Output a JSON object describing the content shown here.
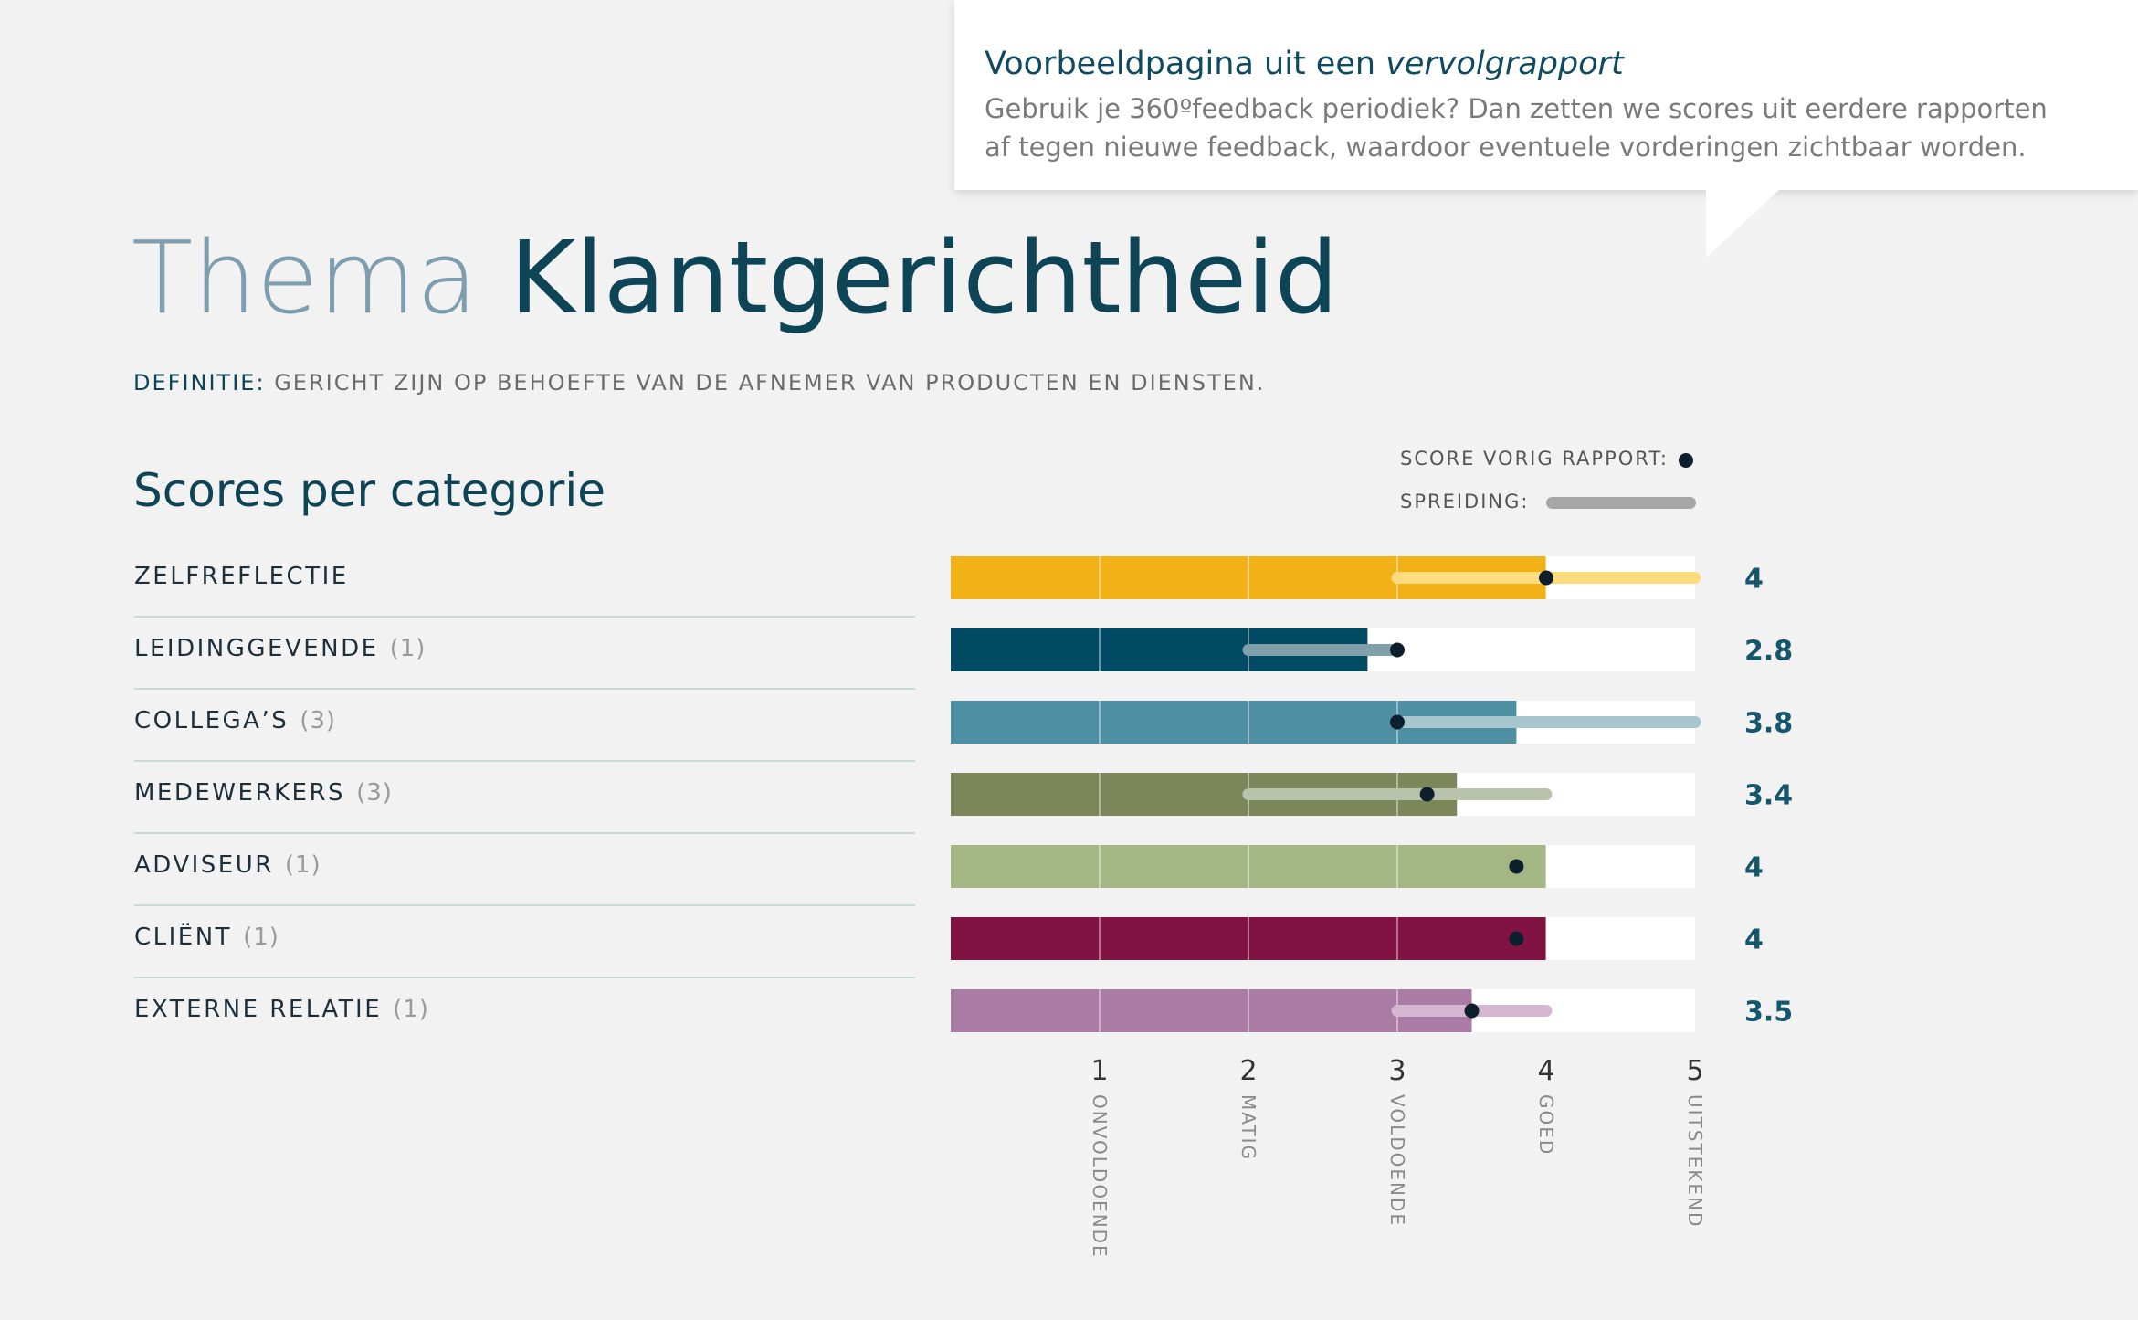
{
  "callout": {
    "title_prefix": "Voorbeeldpagina uit een ",
    "title_emphasis": "vervolgrapport",
    "body": "Gebruik je 360ºfeedback periodiek? Dan zetten we scores uit eerdere rapporten af tegen nieuwe feedback, waardoor eventuele vorderingen zichtbaar worden."
  },
  "header": {
    "title_light": "Thema",
    "title_dark": "Klantgerichtheid",
    "definition_label": "DEFINITIE:",
    "definition_text": "GERICHT ZIJN OP BEHOEFTE VAN DE AFNEMER VAN PRODUCTEN EN DIENSTEN."
  },
  "section_title": "Scores per categorie",
  "legend": {
    "previous_score_label": "SCORE VORIG RAPPORT:",
    "spread_label": "SPREIDING:"
  },
  "chart_data": {
    "type": "bar",
    "orientation": "horizontal",
    "xlim": [
      0,
      5
    ],
    "ticks": [
      {
        "value": 1,
        "label": "1",
        "descriptor": "ONVOLDOENDE"
      },
      {
        "value": 2,
        "label": "2",
        "descriptor": "MATIG"
      },
      {
        "value": 3,
        "label": "3",
        "descriptor": "VOLDOENDE"
      },
      {
        "value": 4,
        "label": "4",
        "descriptor": "GOED"
      },
      {
        "value": 5,
        "label": "5",
        "descriptor": "UITSTEKEND"
      }
    ],
    "legend_placement": "top-right",
    "categories": [
      {
        "name": "ZELFREFLECTIE",
        "count": "",
        "score": 4,
        "score_label": "4",
        "previous": 4.0,
        "spread": [
          3,
          5
        ],
        "color": "#f2b116",
        "spread_color": "#fddc7e"
      },
      {
        "name": "LEIDINGGEVENDE",
        "count": "(1)",
        "score": 2.8,
        "score_label": "2.8",
        "previous": 3.0,
        "spread": [
          2,
          3
        ],
        "color": "#004a63",
        "spread_color": "#7f9fab"
      },
      {
        "name": "COLLEGA’S",
        "count": "(3)",
        "score": 3.8,
        "score_label": "3.8",
        "previous": 3.0,
        "spread": [
          3,
          5
        ],
        "color": "#4f8fa4",
        "spread_color": "#a7c6ce"
      },
      {
        "name": "MEDEWERKERS",
        "count": "(3)",
        "score": 3.4,
        "score_label": "3.4",
        "previous": 3.2,
        "spread": [
          2,
          4
        ],
        "color": "#7b875b",
        "spread_color": "#b9c2ab"
      },
      {
        "name": "ADVISEUR",
        "count": "(1)",
        "score": 4,
        "score_label": "4",
        "previous": 3.8,
        "spread": null,
        "color": "#a3b684",
        "spread_color": ""
      },
      {
        "name": "CLIËNT",
        "count": "(1)",
        "score": 4,
        "score_label": "4",
        "previous": 3.8,
        "spread": null,
        "color": "#811343",
        "spread_color": ""
      },
      {
        "name": "EXTERNE RELATIE",
        "count": "(1)",
        "score": 3.5,
        "score_label": "3.5",
        "previous": 3.5,
        "spread": [
          3,
          4
        ],
        "color": "#a97ba5",
        "spread_color": "#d6b7d2"
      }
    ],
    "colors": {
      "previous_dot": "#0d1f2d",
      "value_text": "#14566c",
      "track": "#ffffff"
    }
  }
}
